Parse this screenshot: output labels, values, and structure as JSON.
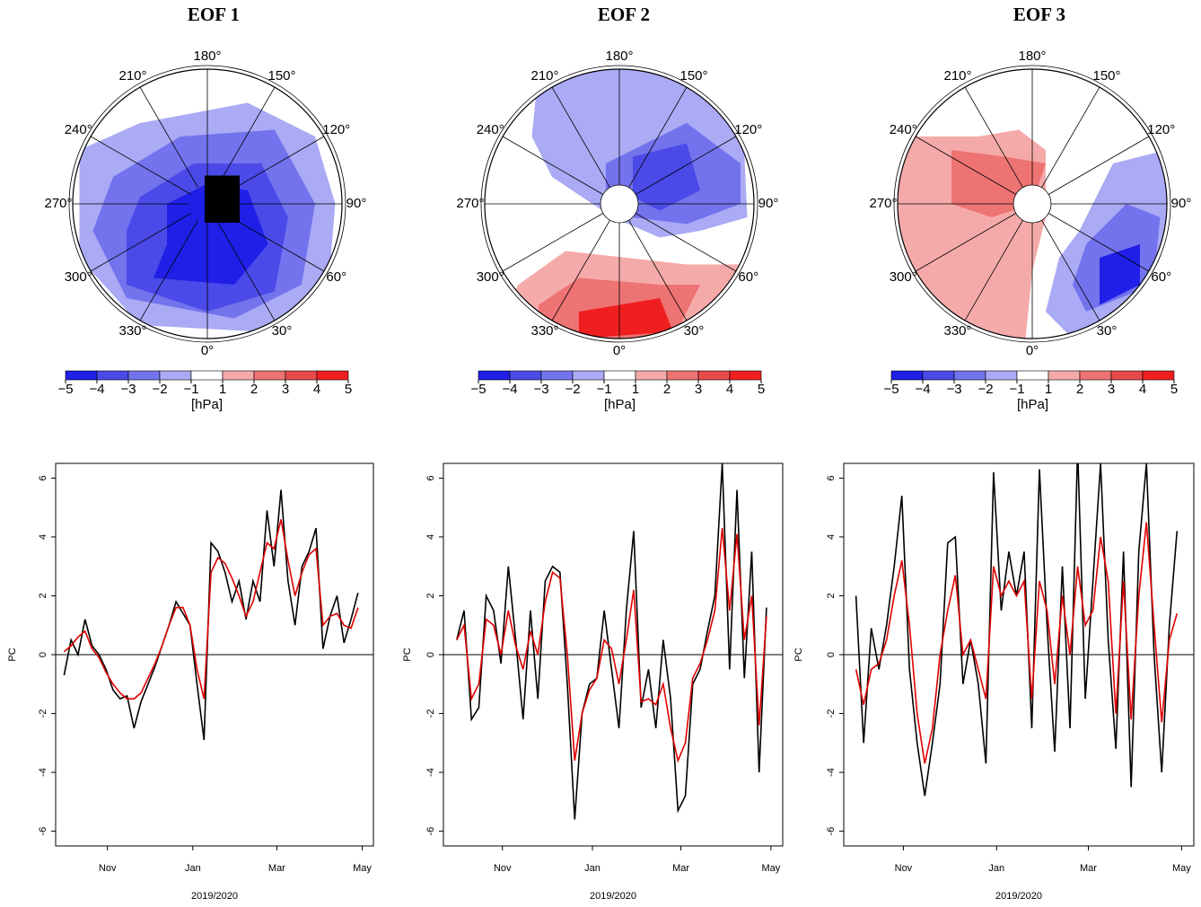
{
  "chart_data": [
    {
      "type": "map",
      "title": "EOF 1",
      "lon_labels": [
        "180°",
        "150°",
        "120°",
        "90°",
        "60°",
        "30°",
        "0°",
        "330°",
        "300°",
        "270°",
        "240°",
        "210°"
      ],
      "colorbar_ticks": [
        {
          "value": -5,
          "label": "−5"
        },
        {
          "value": -4,
          "label": "−4"
        },
        {
          "value": -3,
          "label": "−3"
        },
        {
          "value": -2,
          "label": "−2"
        },
        {
          "value": -1,
          "label": "−1"
        },
        1,
        2,
        3,
        4,
        5
      ],
      "colors": [
        "#1f1fe8",
        "#4a4ae8",
        "#7373ee",
        "#aaaaf5",
        "#ffffff",
        "#f5aaaa",
        "#ee7373",
        "#e84a4a",
        "#f01f1f"
      ],
      "colorbar_label": "[hPa]"
    },
    {
      "type": "map",
      "title": "EOF 2",
      "lon_labels": [
        "180°",
        "150°",
        "120°",
        "90°",
        "60°",
        "30°",
        "0°",
        "330°",
        "300°",
        "270°",
        "240°",
        "210°"
      ],
      "colorbar_ticks": [
        {
          "value": -5,
          "label": "−5"
        },
        {
          "value": -4,
          "label": "−4"
        },
        {
          "value": -3,
          "label": "−3"
        },
        {
          "value": -2,
          "label": "−2"
        },
        {
          "value": -1,
          "label": "−1"
        },
        1,
        2,
        3,
        4,
        5
      ],
      "colors": [
        "#1f1fe8",
        "#4a4ae8",
        "#7373ee",
        "#aaaaf5",
        "#ffffff",
        "#f5aaaa",
        "#ee7373",
        "#e84a4a",
        "#f01f1f"
      ],
      "colorbar_label": "[hPa]"
    },
    {
      "type": "map",
      "title": "EOF 3",
      "lon_labels": [
        "180°",
        "150°",
        "120°",
        "90°",
        "60°",
        "30°",
        "0°",
        "330°",
        "300°",
        "270°",
        "240°",
        "210°"
      ],
      "colorbar_ticks": [
        {
          "value": -5,
          "label": "−5"
        },
        {
          "value": -4,
          "label": "−4"
        },
        {
          "value": -3,
          "label": "−3"
        },
        {
          "value": -2,
          "label": "−2"
        },
        {
          "value": -1,
          "label": "−1"
        },
        1,
        2,
        3,
        4,
        5
      ],
      "colors": [
        "#1f1fe8",
        "#4a4ae8",
        "#7373ee",
        "#aaaaf5",
        "#ffffff",
        "#f5aaaa",
        "#ee7373",
        "#e84a4a",
        "#f01f1f"
      ],
      "colorbar_label": "[hPa]"
    },
    {
      "type": "line",
      "y_label": "PC",
      "x_label": "2019/2020",
      "x": [
        0,
        5,
        10,
        15,
        20,
        25,
        30,
        35,
        40,
        45,
        50,
        55,
        60,
        65,
        70,
        75,
        80,
        85,
        90,
        95,
        100,
        105,
        110,
        115,
        120,
        125,
        130,
        135,
        140,
        145,
        150,
        155,
        160,
        165,
        170,
        175,
        180,
        185,
        190,
        195,
        200,
        205,
        210
      ],
      "xlim": [
        -6,
        221
      ],
      "xticks": [
        {
          "value": 31,
          "label": "Nov"
        },
        {
          "value": 92,
          "label": "Jan"
        },
        {
          "value": 152,
          "label": "Mar"
        },
        {
          "value": 213,
          "label": "May"
        }
      ],
      "ylim": [
        -6.5,
        6.5
      ],
      "yticks": [
        -6,
        -4,
        -2,
        0,
        2,
        4,
        6
      ],
      "series": [
        {
          "color": "#000000",
          "values": [
            -0.7,
            0.5,
            0.0,
            1.2,
            0.3,
            0.0,
            -0.5,
            -1.2,
            -1.5,
            -1.4,
            -2.5,
            -1.6,
            -1.0,
            -0.4,
            0.3,
            1.0,
            1.8,
            1.4,
            1.0,
            -1.0,
            -2.9,
            3.8,
            3.5,
            2.8,
            1.8,
            2.5,
            1.2,
            2.5,
            1.8,
            4.9,
            3.0,
            5.6,
            2.5,
            1.0,
            3.0,
            3.5,
            4.3,
            0.2,
            1.3,
            2.0,
            0.4,
            1.2,
            2.1
          ]
        },
        {
          "color": "#e00000",
          "values": [
            0.1,
            0.3,
            0.6,
            0.8,
            0.2,
            -0.1,
            -0.6,
            -1.0,
            -1.3,
            -1.5,
            -1.5,
            -1.3,
            -0.8,
            -0.3,
            0.3,
            1.0,
            1.6,
            1.6,
            1.0,
            -0.5,
            -1.5,
            2.8,
            3.3,
            3.1,
            2.6,
            2.0,
            1.3,
            1.8,
            2.8,
            3.8,
            3.6,
            4.6,
            3.2,
            2.0,
            2.8,
            3.4,
            3.6,
            1.0,
            1.3,
            1.4,
            1.0,
            0.9,
            1.6
          ]
        }
      ]
    },
    {
      "type": "line",
      "y_label": "PC",
      "x_label": "2019/2020",
      "x": [
        0,
        5,
        10,
        15,
        20,
        25,
        30,
        35,
        40,
        45,
        50,
        55,
        60,
        65,
        70,
        75,
        80,
        85,
        90,
        95,
        100,
        105,
        110,
        115,
        120,
        125,
        130,
        135,
        140,
        145,
        150,
        155,
        160,
        165,
        170,
        175,
        180,
        185,
        190,
        195,
        200,
        205,
        210
      ],
      "xlim": [
        -9,
        221
      ],
      "xticks": [
        {
          "value": 31,
          "label": "Nov"
        },
        {
          "value": 92,
          "label": "Jan"
        },
        {
          "value": 152,
          "label": "Mar"
        },
        {
          "value": 213,
          "label": "May"
        }
      ],
      "ylim": [
        -6.5,
        6.5
      ],
      "yticks": [
        -6,
        -4,
        -2,
        0,
        2,
        4,
        6
      ],
      "series": [
        {
          "color": "#000000",
          "values": [
            0.5,
            1.5,
            -2.2,
            -1.8,
            2.0,
            1.5,
            -0.3,
            3.0,
            0.5,
            -2.2,
            1.5,
            -1.5,
            2.5,
            3.0,
            2.8,
            -1.0,
            -5.6,
            -2.0,
            -1.0,
            -0.8,
            1.5,
            -0.5,
            -2.5,
            1.5,
            4.2,
            -1.8,
            -0.5,
            -2.5,
            0.5,
            -1.5,
            -5.3,
            -4.8,
            -1.0,
            -0.5,
            0.8,
            2.0,
            6.5,
            -0.5,
            5.6,
            -0.8,
            3.5,
            -4.0,
            1.6
          ]
        },
        {
          "color": "#e00000",
          "values": [
            0.5,
            1.0,
            -1.5,
            -1.0,
            1.2,
            1.0,
            0.0,
            1.5,
            0.3,
            -0.5,
            0.8,
            0.0,
            1.8,
            2.8,
            2.6,
            0.0,
            -3.6,
            -2.0,
            -1.2,
            -0.8,
            0.5,
            0.2,
            -1.0,
            0.5,
            2.2,
            -1.6,
            -1.5,
            -1.7,
            -1.0,
            -2.5,
            -3.6,
            -3.0,
            -0.8,
            -0.3,
            0.5,
            1.5,
            4.3,
            1.5,
            4.1,
            0.5,
            2.0,
            -2.4,
            1.3
          ]
        }
      ]
    },
    {
      "type": "line",
      "y_label": "PC",
      "x_label": "2019/2020",
      "x": [
        0,
        5,
        10,
        15,
        20,
        25,
        30,
        35,
        40,
        45,
        50,
        55,
        60,
        65,
        70,
        75,
        80,
        85,
        90,
        95,
        100,
        105,
        110,
        115,
        120,
        125,
        130,
        135,
        140,
        145,
        150,
        155,
        160,
        165,
        170,
        175,
        180,
        185,
        190,
        195,
        200,
        205,
        210
      ],
      "xlim": [
        -8,
        221
      ],
      "xticks": [
        {
          "value": 31,
          "label": "Nov"
        },
        {
          "value": 92,
          "label": "Jan"
        },
        {
          "value": 152,
          "label": "Mar"
        },
        {
          "value": 213,
          "label": "May"
        }
      ],
      "ylim": [
        -6.5,
        6.5
      ],
      "yticks": [
        -6,
        -4,
        -2,
        0,
        2,
        4,
        6
      ],
      "series": [
        {
          "color": "#000000",
          "values": [
            2.0,
            -3.0,
            0.9,
            -0.5,
            1.0,
            3.0,
            5.4,
            -0.5,
            -3.0,
            -4.8,
            -3.0,
            -1.0,
            3.8,
            4.0,
            -1.0,
            0.5,
            -1.0,
            -3.7,
            6.2,
            1.5,
            3.5,
            2.0,
            3.5,
            -2.5,
            6.3,
            1.0,
            -3.3,
            3.0,
            -2.5,
            7.0,
            -1.5,
            2.5,
            6.5,
            0.5,
            -3.2,
            3.5,
            -4.5,
            3.5,
            6.5,
            0.0,
            -4.0,
            1.0,
            4.2
          ]
        },
        {
          "color": "#e00000",
          "values": [
            -0.5,
            -1.7,
            -0.5,
            -0.3,
            0.5,
            2.0,
            3.2,
            1.0,
            -2.0,
            -3.7,
            -2.5,
            0.0,
            1.5,
            2.7,
            0.0,
            0.5,
            -0.5,
            -1.5,
            3.0,
            2.0,
            2.5,
            2.0,
            2.5,
            -1.5,
            2.5,
            1.5,
            -1.0,
            2.0,
            0.0,
            3.0,
            1.0,
            1.5,
            4.0,
            2.5,
            -2.0,
            2.5,
            -2.2,
            2.0,
            4.5,
            1.0,
            -2.3,
            0.5,
            1.4
          ]
        }
      ]
    }
  ]
}
